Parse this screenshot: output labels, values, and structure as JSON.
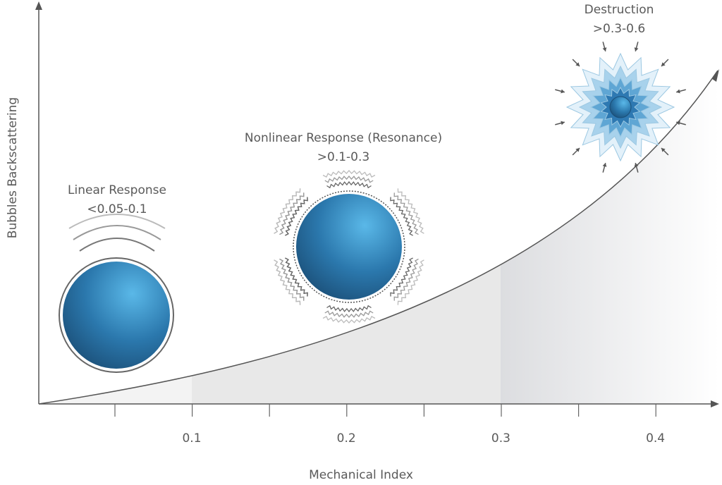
{
  "x_axis": {
    "title": "Mechanical Index",
    "ticks": [
      "0.1",
      "0.2",
      "0.3",
      "0.4"
    ]
  },
  "y_axis": {
    "title": "Bubbles Backscattering"
  },
  "regions": [
    {
      "title": "Linear Response",
      "range": "<0.05-0.1"
    },
    {
      "title": "Nonlinear Response (Resonance)",
      "range": ">0.1-0.3"
    },
    {
      "title": "Destruction",
      "range": ">0.3-0.6"
    }
  ]
}
